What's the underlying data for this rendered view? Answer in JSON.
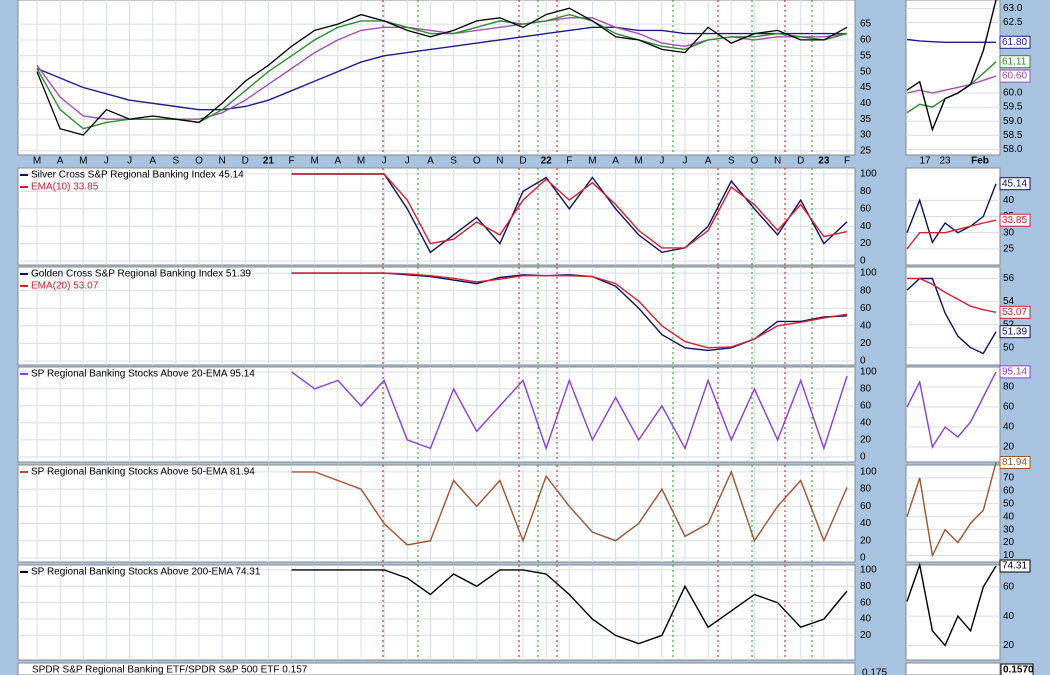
{
  "chart_data": [
    {
      "type": "line",
      "categories": [
        "M",
        "A",
        "M",
        "J",
        "J",
        "A",
        "S",
        "O",
        "N",
        "D",
        "21",
        "F",
        "M",
        "A",
        "M",
        "J",
        "J",
        "A",
        "S",
        "O",
        "N",
        "D",
        "22",
        "F",
        "M",
        "A",
        "M",
        "J",
        "J",
        "A",
        "S",
        "O",
        "N",
        "D",
        "23",
        "F"
      ],
      "ylim": [
        23.7,
        72.6
      ],
      "yticks": [
        25,
        30,
        35,
        40,
        45,
        50,
        55,
        60,
        65
      ],
      "series": [
        {
          "color": "#1c1c8c",
          "values": [
            51,
            48,
            45,
            43,
            41,
            40,
            39,
            38,
            38,
            39,
            41,
            44,
            47,
            50,
            53,
            55,
            56,
            57,
            58,
            59,
            60,
            61,
            62,
            63,
            64,
            64,
            63,
            63,
            62,
            62,
            62,
            62,
            62,
            62,
            62,
            62
          ]
        },
        {
          "color": "#a050b0",
          "values": [
            52,
            42,
            36,
            35,
            35,
            35,
            35,
            35,
            37,
            41,
            46,
            51,
            56,
            60,
            63,
            64,
            64,
            63,
            62,
            63,
            64,
            65,
            66,
            67,
            67,
            64,
            62,
            59,
            58,
            60,
            61,
            60,
            61,
            61,
            61,
            62
          ]
        },
        {
          "color": "#2e8b2e",
          "values": [
            51,
            38,
            32,
            34,
            35,
            35,
            35,
            34,
            38,
            44,
            50,
            55,
            60,
            64,
            66,
            66,
            64,
            62,
            62,
            64,
            66,
            65,
            66,
            68,
            66,
            62,
            60,
            58,
            57,
            60,
            61,
            61,
            62,
            61,
            60,
            62
          ]
        },
        {
          "color": "#000000",
          "values": [
            50,
            32,
            30,
            38,
            35,
            36,
            35,
            34,
            40,
            47,
            52,
            58,
            63,
            65,
            68,
            66,
            63,
            61,
            63,
            66,
            67,
            64,
            68,
            70,
            66,
            61,
            60,
            57,
            56,
            64,
            59,
            62,
            63,
            60,
            60,
            64
          ]
        }
      ],
      "zoom": {
        "categories": [
          "17",
          "23",
          "Feb"
        ],
        "ylim": [
          57.8,
          63.3
        ],
        "yticks": [
          {
            "value": 58,
            "label": "58.0"
          },
          {
            "value": 58.5,
            "label": "58.5"
          },
          {
            "value": 59,
            "label": "59.0"
          },
          {
            "value": 59.5,
            "label": "59.5"
          },
          {
            "value": 60,
            "label": "60.0"
          },
          {
            "value": 62.5,
            "label": "62.5"
          },
          {
            "value": 63,
            "label": "63.0"
          }
        ],
        "series": [
          {
            "color": "#1c1c8c",
            "values": [
              61.9,
              61.85,
              61.82,
              61.8,
              61.8,
              61.8,
              61.8,
              61.8
            ],
            "value_label": "61.80"
          },
          {
            "color": "#2e8b2e",
            "values": [
              59.3,
              59.6,
              59.5,
              59.8,
              60.0,
              60.3,
              60.7,
              61.11
            ],
            "value_label": "61.11"
          },
          {
            "color": "#a050b0",
            "values": [
              60.0,
              60.1,
              60.0,
              60.1,
              60.2,
              60.3,
              60.45,
              60.6
            ],
            "value_label": "60.60"
          },
          {
            "color": "#000000",
            "values": [
              60.1,
              60.4,
              58.7,
              59.8,
              60.0,
              60.3,
              61.5,
              63.3
            ]
          }
        ]
      }
    },
    {
      "type": "line",
      "ylim": [
        -4.6,
        106.9
      ],
      "yticks": [
        0,
        20,
        40,
        60,
        80,
        100
      ],
      "series": [
        {
          "name": "Silver Cross S&P Regional Banking Index 45.14",
          "color": "#101060",
          "values": [
            null,
            null,
            null,
            null,
            null,
            null,
            null,
            null,
            null,
            null,
            null,
            100,
            100,
            100,
            100,
            100,
            60,
            10,
            30,
            50,
            20,
            80,
            96,
            60,
            96,
            60,
            30,
            10,
            15,
            40,
            92,
            60,
            30,
            70,
            20,
            45.14
          ]
        },
        {
          "name": "EMA(10) 33.85",
          "color": "#d02030",
          "values": [
            null,
            null,
            null,
            null,
            null,
            null,
            null,
            null,
            null,
            null,
            null,
            100,
            100,
            100,
            100,
            100,
            70,
            20,
            25,
            45,
            30,
            70,
            94,
            70,
            90,
            65,
            35,
            15,
            15,
            35,
            85,
            65,
            35,
            65,
            28,
            33.85
          ]
        }
      ],
      "zoom": {
        "ylim": [
          20,
          50
        ],
        "yticks": [
          25,
          30,
          35,
          40
        ],
        "series": [
          {
            "color": "#101060",
            "values": [
              30,
              40,
              27,
              33,
              30,
              32,
              35,
              45.14
            ],
            "value_label": "45.14"
          },
          {
            "color": "#d02030",
            "values": [
              25,
              30,
              30,
              30,
              31,
              32,
              33,
              33.85
            ],
            "value_label": "33.85"
          }
        ]
      }
    },
    {
      "type": "line",
      "ylim": [
        -4.6,
        106.9
      ],
      "yticks": [
        0,
        20,
        40,
        60,
        80,
        100
      ],
      "series": [
        {
          "name": "Golden Cross S&P Regional Banking Index 51.39",
          "color": "#101060",
          "values": [
            null,
            null,
            null,
            null,
            null,
            null,
            null,
            null,
            null,
            null,
            null,
            100,
            100,
            100,
            100,
            100,
            98,
            96,
            92,
            88,
            95,
            98,
            97,
            98,
            96,
            85,
            60,
            30,
            15,
            12,
            15,
            25,
            45,
            45,
            50,
            51.39
          ]
        },
        {
          "name": "EMA(20) 53.07",
          "color": "#d02030",
          "values": [
            null,
            null,
            null,
            null,
            null,
            null,
            null,
            null,
            null,
            null,
            null,
            100,
            100,
            100,
            100,
            100,
            99,
            97,
            94,
            90,
            93,
            97,
            97,
            97,
            96,
            88,
            68,
            40,
            22,
            15,
            16,
            25,
            40,
            44,
            49,
            53.07
          ]
        }
      ],
      "zoom": {
        "ylim": [
          48.5,
          57
        ],
        "yticks": [
          50,
          52,
          54,
          56
        ],
        "series": [
          {
            "color": "#101060",
            "values": [
              55,
              56,
              56,
              53,
              51,
              50,
              49.5,
              51.39
            ],
            "value_label": "51.39"
          },
          {
            "color": "#d02030",
            "values": [
              56,
              56,
              55.5,
              54.8,
              54.2,
              53.6,
              53.3,
              53.07
            ],
            "value_label": "53.07"
          }
        ]
      }
    },
    {
      "type": "line",
      "ylim": [
        -6,
        105.8
      ],
      "yticks": [
        0,
        20,
        40,
        60,
        80,
        100
      ],
      "series": [
        {
          "name": "SP Regional Banking Stocks Above 20-EMA 95.14",
          "color": "#8a3fd6",
          "values": [
            null,
            null,
            null,
            null,
            null,
            null,
            null,
            null,
            null,
            null,
            null,
            100,
            80,
            90,
            60,
            90,
            20,
            10,
            80,
            30,
            60,
            90,
            10,
            90,
            20,
            70,
            20,
            60,
            10,
            90,
            20,
            80,
            20,
            90,
            10,
            95.14
          ]
        }
      ],
      "zoom": {
        "ylim": [
          5,
          100
        ],
        "yticks": [
          20,
          40,
          60,
          80
        ],
        "series": [
          {
            "color": "#8a3fd6",
            "values": [
              60,
              85,
              20,
              40,
              30,
              45,
              70,
              95.14
            ],
            "value_label": "95.14"
          }
        ]
      }
    },
    {
      "type": "line",
      "ylim": [
        -4.7,
        108
      ],
      "yticks": [
        0,
        20,
        40,
        60,
        80,
        100
      ],
      "series": [
        {
          "name": "SP Regional Banking Stocks Above 50-EMA 81.94",
          "color": "#a0522d",
          "values": [
            null,
            null,
            null,
            null,
            null,
            null,
            null,
            null,
            null,
            null,
            null,
            100,
            100,
            90,
            80,
            40,
            15,
            20,
            90,
            60,
            90,
            20,
            95,
            60,
            30,
            20,
            40,
            80,
            25,
            40,
            100,
            20,
            60,
            90,
            20,
            81.94
          ]
        }
      ],
      "zoom": {
        "ylim": [
          5,
          80
        ],
        "yticks": [
          10,
          20,
          30,
          40,
          50,
          60,
          70
        ],
        "series": [
          {
            "color": "#a0522d",
            "values": [
              40,
              70,
              10,
              30,
              20,
              35,
              45,
              81.94
            ],
            "value_label": "81.94"
          }
        ]
      }
    },
    {
      "type": "line",
      "ylim": [
        -10,
        106
      ],
      "yticks": [
        20,
        40,
        60,
        80,
        100
      ],
      "series": [
        {
          "name": "SP Regional Banking Stocks Above 200-EMA 74.31",
          "color": "#000000",
          "values": [
            null,
            null,
            null,
            null,
            null,
            null,
            null,
            null,
            null,
            null,
            null,
            100,
            100,
            100,
            100,
            100,
            90,
            70,
            95,
            80,
            100,
            100,
            95,
            70,
            40,
            20,
            10,
            20,
            80,
            30,
            50,
            70,
            60,
            30,
            40,
            74.31
          ]
        }
      ],
      "zoom": {
        "ylim": [
          10,
          75
        ],
        "yticks": [
          20,
          40,
          60
        ],
        "series": [
          {
            "color": "#000000",
            "values": [
              50,
              75,
              30,
              20,
              40,
              30,
              60,
              74.31
            ],
            "value_label": "74.31"
          }
        ]
      }
    },
    {
      "type": "label",
      "name": "SPDR S&P Regional Banking ETF/SPDR S&P 500 ETF 0.157",
      "ytick": 0.175,
      "value_label": "0.1570"
    }
  ]
}
